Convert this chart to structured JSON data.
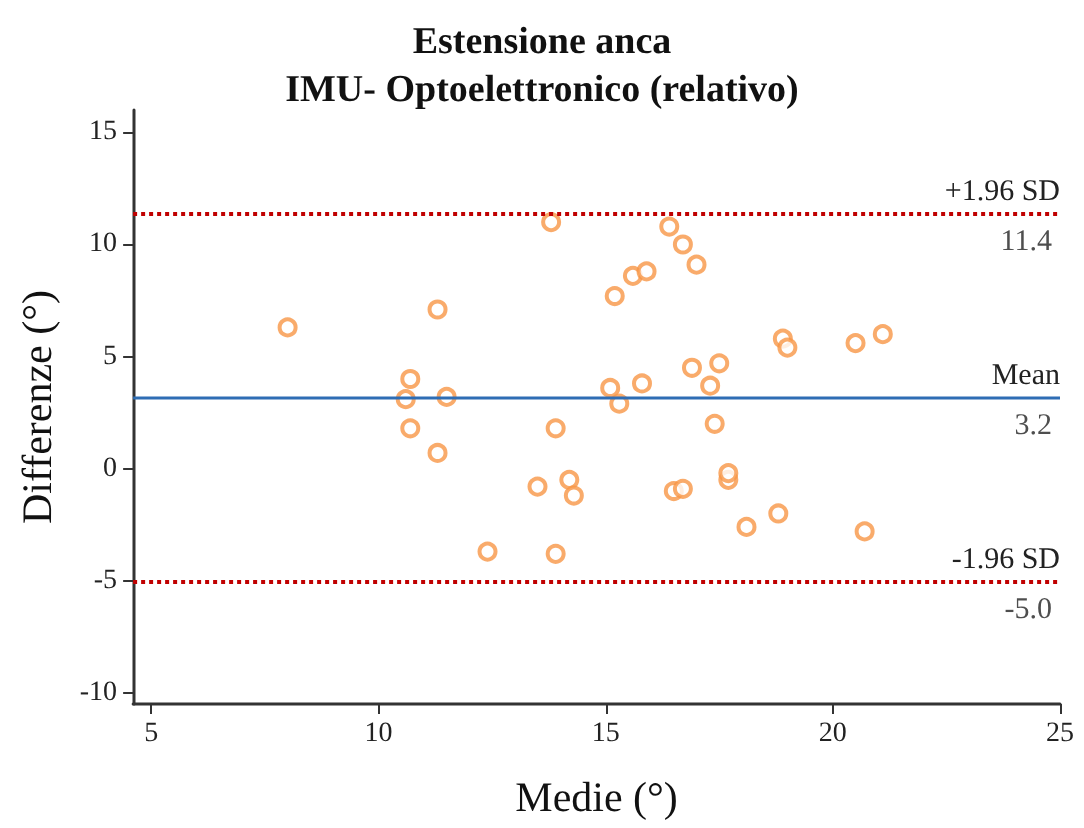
{
  "chart_data": {
    "type": "scatter",
    "title": "Estensione anca\nIMU- Optoelettronico (relativo)",
    "xlabel": "Medie (°)",
    "ylabel": "Differenze (°)",
    "xlim": [
      4.6,
      25
    ],
    "xticks": [
      5,
      10,
      15,
      20,
      25
    ],
    "ylim": [
      -10.5,
      16
    ],
    "yticks": [
      -10,
      -5,
      0,
      5,
      10,
      15
    ],
    "grid": false,
    "marker": "circle",
    "series": [
      {
        "color": "#f79646",
        "x": [
          8.0,
          11.3,
          10.7,
          10.6,
          11.5,
          10.7,
          11.3,
          13.8,
          15.2,
          15.1,
          15.3,
          13.9,
          13.5,
          14.2,
          14.3,
          12.4,
          13.9,
          15.6,
          15.9,
          16.4,
          16.7,
          17.0,
          15.8,
          16.9,
          17.5,
          17.3,
          17.4,
          18.9,
          19.0,
          20.5,
          21.1,
          16.5,
          16.7,
          17.7,
          17.7,
          18.1,
          18.8,
          20.7
        ],
        "values": [
          6.3,
          7.1,
          4.0,
          3.1,
          3.2,
          1.8,
          0.7,
          11.0,
          7.7,
          3.6,
          2.9,
          1.8,
          -0.8,
          -0.5,
          -1.2,
          -3.7,
          -3.8,
          8.6,
          8.8,
          10.8,
          10.0,
          9.1,
          3.8,
          4.5,
          4.7,
          3.7,
          2.0,
          5.8,
          5.4,
          5.6,
          6.0,
          -1.0,
          -0.9,
          -0.5,
          -0.2,
          -2.6,
          -2.0,
          -2.8
        ]
      }
    ],
    "ref_lines": [
      {
        "axis": "y",
        "value": 11.4,
        "label": "+1.96 SD",
        "color": "#c00000",
        "line_style": "dotted"
      },
      {
        "axis": "y",
        "value": 3.2,
        "label": "Mean",
        "color": "#2e6db4",
        "line_style": "solid"
      },
      {
        "axis": "y",
        "value": -5.0,
        "label": "-1.96 SD",
        "color": "#c00000",
        "line_style": "dotted"
      }
    ],
    "annotations": [
      {
        "text": "11.4",
        "y": 11.4
      },
      {
        "text": "3.2",
        "y": 3.2
      },
      {
        "text": "-5.0",
        "y": -5.0
      }
    ]
  }
}
